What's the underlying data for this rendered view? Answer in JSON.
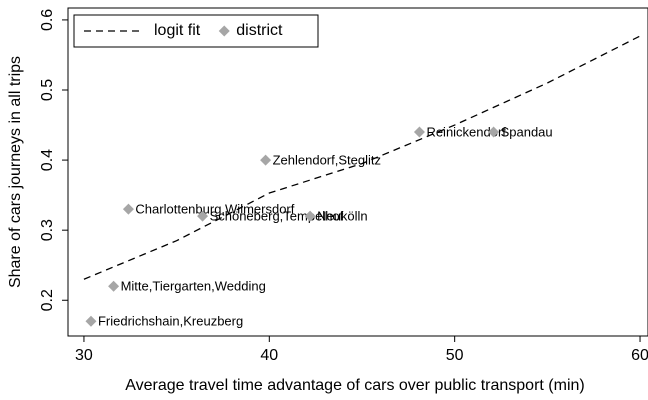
{
  "chart_data": {
    "type": "scatter",
    "x_label": "Average travel time advantage of cars over public transport (min)",
    "y_label": "Share of cars journeys in all trips",
    "xlim": [
      29.14,
      60.43
    ],
    "ylim": [
      0.149,
      0.617
    ],
    "xticks": [
      30,
      40,
      50,
      60
    ],
    "yticks": [
      0.2,
      0.3,
      0.4,
      0.5,
      0.6
    ],
    "legend": "top-left",
    "series": [
      {
        "name": "logit fit",
        "kind": "line",
        "color": "#000000",
        "x": [
          30,
          35,
          40,
          45,
          50,
          55,
          60
        ],
        "values": [
          0.23,
          0.285,
          0.353,
          0.395,
          0.45,
          0.51,
          0.577
        ]
      },
      {
        "name": "district",
        "kind": "points",
        "color": "#a6a6a6",
        "x": [
          30.38,
          31.6,
          32.4,
          36.4,
          42.2,
          39.8,
          48.1,
          52.1
        ],
        "values": [
          0.17,
          0.22,
          0.33,
          0.32,
          0.32,
          0.4,
          0.44,
          0.44
        ],
        "labels": [
          "Friedrichshain,Kreuzberg",
          "Mitte,Tiergarten,Wedding",
          "Charlottenburg,Wilmersdorf",
          "Schöneberg,Tempelhof",
          "Neukölln",
          "Zehlendorf,Steglitz",
          "Reinickendorf",
          "Spandau"
        ]
      }
    ]
  }
}
